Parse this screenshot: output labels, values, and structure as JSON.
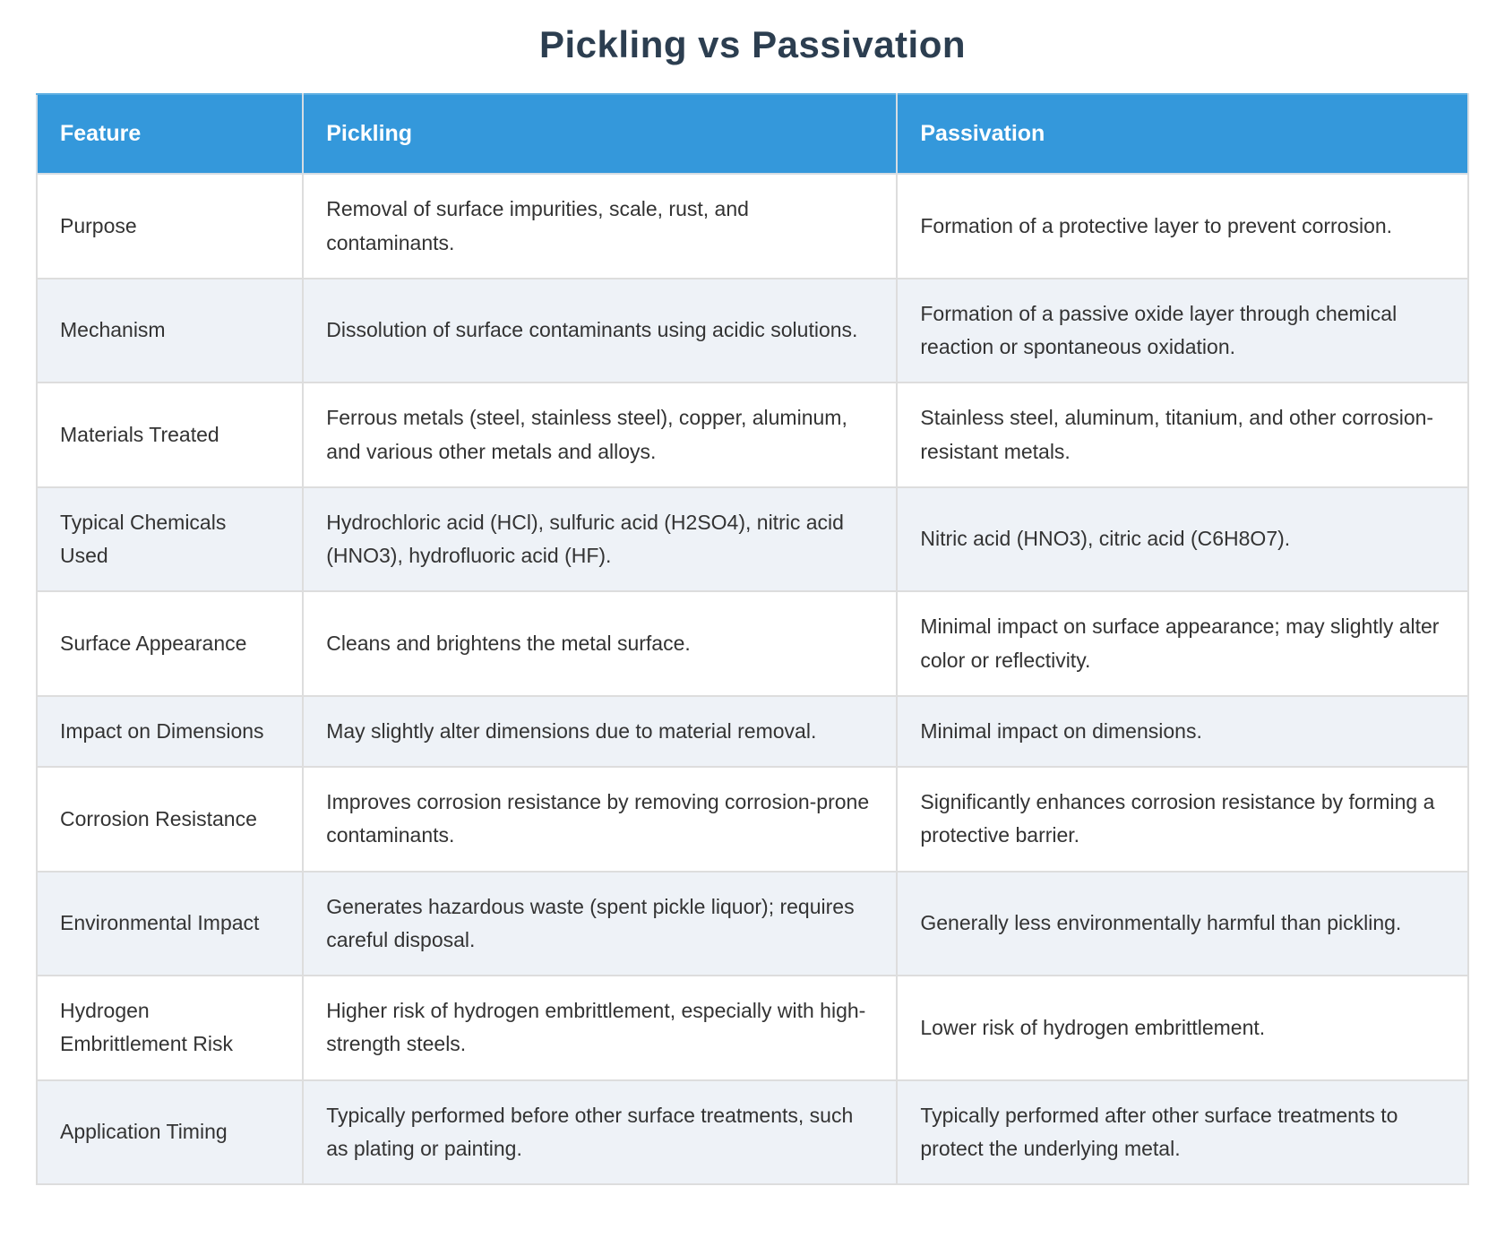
{
  "title": "Pickling vs Passivation",
  "table": {
    "columns": [
      {
        "label": "Feature"
      },
      {
        "label": "Pickling"
      },
      {
        "label": "Passivation"
      }
    ],
    "rows": [
      {
        "feature": "Purpose",
        "pickling": "Removal of surface impurities, scale, rust, and contaminants.",
        "passivation": "Formation of a protective layer to prevent corrosion."
      },
      {
        "feature": "Mechanism",
        "pickling": "Dissolution of surface contaminants using acidic solutions.",
        "passivation": "Formation of a passive oxide layer through chemical reaction or spontaneous oxidation."
      },
      {
        "feature": "Materials Treated",
        "pickling": "Ferrous metals (steel, stainless steel), copper, aluminum, and various other metals and alloys.",
        "passivation": "Stainless steel, aluminum, titanium, and other corrosion-resistant metals."
      },
      {
        "feature": "Typical Chemicals Used",
        "pickling": "Hydrochloric acid (HCl), sulfuric acid (H2SO4), nitric acid (HNO3), hydrofluoric acid (HF).",
        "passivation": "Nitric acid (HNO3), citric acid (C6H8O7)."
      },
      {
        "feature": "Surface Appearance",
        "pickling": "Cleans and brightens the metal surface.",
        "passivation": "Minimal impact on surface appearance; may slightly alter color or reflectivity."
      },
      {
        "feature": "Impact on Dimensions",
        "pickling": "May slightly alter dimensions due to material removal.",
        "passivation": "Minimal impact on dimensions."
      },
      {
        "feature": "Corrosion Resistance",
        "pickling": "Improves corrosion resistance by removing corrosion-prone contaminants.",
        "passivation": "Significantly enhances corrosion resistance by forming a protective barrier."
      },
      {
        "feature": "Environmental Impact",
        "pickling": "Generates hazardous waste (spent pickle liquor); requires careful disposal.",
        "passivation": "Generally less environmentally harmful than pickling."
      },
      {
        "feature": "Hydrogen Embrittlement Risk",
        "pickling": "Higher risk of hydrogen embrittlement, especially with high-strength steels.",
        "passivation": "Lower risk of hydrogen embrittlement."
      },
      {
        "feature": "Application Timing",
        "pickling": "Typically performed before other surface treatments, such as plating or painting.",
        "passivation": "Typically performed after other surface treatments to protect the underlying metal."
      }
    ]
  },
  "colors": {
    "header_bg": "#3498db",
    "header_text": "#ffffff",
    "row_bg": "#ffffff",
    "row_alt_bg": "#eef2f7",
    "title": "#2c3e50",
    "body_text": "#333333",
    "border": "#dddddd"
  }
}
